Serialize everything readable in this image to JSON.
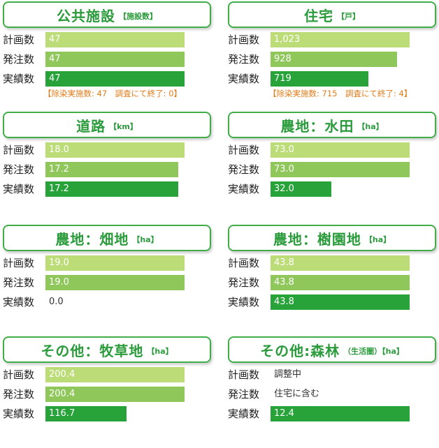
{
  "colors": {
    "plan": "#bcdc78",
    "order": "#8fc75a",
    "actual": "#27a33a",
    "title": "#2a9b3a",
    "note": "#e07b1a"
  },
  "labels": {
    "plan": "計画数",
    "order": "発注数",
    "actual": "実績数"
  },
  "chart_data": [
    {
      "type": "bar",
      "title": "公共施設",
      "unit": "【施設数】",
      "max": 47,
      "rows": {
        "plan": {
          "value": 47,
          "text": "47"
        },
        "order": {
          "value": 47,
          "text": "47"
        },
        "actual": {
          "value": 47,
          "text": "47"
        }
      },
      "note": "【除染実施数: 47　調査にて終了: 0】"
    },
    {
      "type": "bar",
      "title": "住宅",
      "unit": "【戸】",
      "max": 1023,
      "rows": {
        "plan": {
          "value": 1023,
          "text": "1,023"
        },
        "order": {
          "value": 928,
          "text": "928"
        },
        "actual": {
          "value": 719,
          "text": "719"
        }
      },
      "note": "【除染実施数: 715　調査にて終了: 4】"
    },
    {
      "type": "bar",
      "title": "道路",
      "unit": "【km】",
      "max": 18.0,
      "rows": {
        "plan": {
          "value": 18.0,
          "text": "18.0"
        },
        "order": {
          "value": 17.2,
          "text": "17.2"
        },
        "actual": {
          "value": 17.2,
          "text": "17.2"
        }
      }
    },
    {
      "type": "bar",
      "title": "農地：水田",
      "unit": "【ha】",
      "max": 73.0,
      "rows": {
        "plan": {
          "value": 73.0,
          "text": "73.0"
        },
        "order": {
          "value": 73.0,
          "text": "73.0"
        },
        "actual": {
          "value": 32.0,
          "text": "32.0"
        }
      }
    },
    {
      "type": "bar",
      "title": "農地：畑地",
      "unit": "【ha】",
      "max": 19.0,
      "rows": {
        "plan": {
          "value": 19.0,
          "text": "19.0"
        },
        "order": {
          "value": 19.0,
          "text": "19.0"
        },
        "actual": {
          "value": 0.0,
          "text": "0.0"
        }
      }
    },
    {
      "type": "bar",
      "title": "農地：樹園地",
      "unit": "【ha】",
      "max": 43.8,
      "rows": {
        "plan": {
          "value": 43.8,
          "text": "43.8"
        },
        "order": {
          "value": 43.8,
          "text": "43.8"
        },
        "actual": {
          "value": 43.8,
          "text": "43.8"
        }
      }
    },
    {
      "type": "bar",
      "title": "その他：牧草地",
      "unit": "【ha】",
      "max": 200.4,
      "rows": {
        "plan": {
          "value": 200.4,
          "text": "200.4"
        },
        "order": {
          "value": 200.4,
          "text": "200.4"
        },
        "actual": {
          "value": 116.7,
          "text": "116.7"
        }
      }
    },
    {
      "type": "bar",
      "title": "その他:森林",
      "unit": "（生活圏）【ha】",
      "max": 12.4,
      "rows": {
        "plan": {
          "value": null,
          "text": "調整中"
        },
        "order": {
          "value": null,
          "text": "住宅に含む"
        },
        "actual": {
          "value": 12.4,
          "text": "12.4"
        }
      }
    }
  ]
}
